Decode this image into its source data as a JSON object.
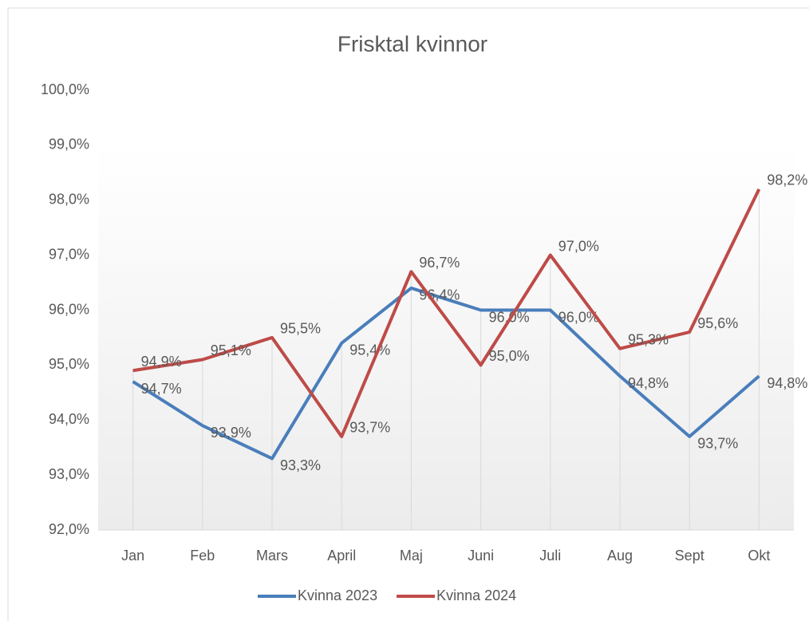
{
  "chart_data": {
    "type": "line",
    "title": "Frisktal kvinnor",
    "categories": [
      "Jan",
      "Feb",
      "Mars",
      "April",
      "Maj",
      "Juni",
      "Juli",
      "Aug",
      "Sept",
      "Okt"
    ],
    "series": [
      {
        "name": "Kvinna 2023",
        "color": "#4a7ebb",
        "values": [
          94.7,
          93.9,
          93.3,
          95.4,
          96.4,
          96.0,
          96.0,
          94.8,
          93.7,
          94.8
        ],
        "value_labels": [
          "94,7%",
          "93,9%",
          "93,3%",
          "95,4%",
          "96,4%",
          "96,0%",
          "96,0%",
          "94,8%",
          "93,7%",
          "94,8%"
        ]
      },
      {
        "name": "Kvinna 2024",
        "color": "#be4b48",
        "values": [
          94.9,
          95.1,
          95.5,
          93.7,
          96.7,
          95.0,
          97.0,
          95.3,
          95.6,
          98.2
        ],
        "value_labels": [
          "94,9%",
          "95,1%",
          "95,5%",
          "93,7%",
          "96,7%",
          "95,0%",
          "97,0%",
          "95,3%",
          "95,6%",
          "98,2%"
        ]
      }
    ],
    "ylim": [
      92,
      100
    ],
    "yticks": [
      {
        "value": 92,
        "label": "92,0%"
      },
      {
        "value": 93,
        "label": "93,0%"
      },
      {
        "value": 94,
        "label": "94,0%"
      },
      {
        "value": 95,
        "label": "95,0%"
      },
      {
        "value": 96,
        "label": "96,0%"
      },
      {
        "value": 97,
        "label": "97,0%"
      },
      {
        "value": 98,
        "label": "98,0%"
      },
      {
        "value": 99,
        "label": "99,0%"
      },
      {
        "value": 100,
        "label": "100,0%"
      }
    ],
    "legend": "bottom"
  }
}
